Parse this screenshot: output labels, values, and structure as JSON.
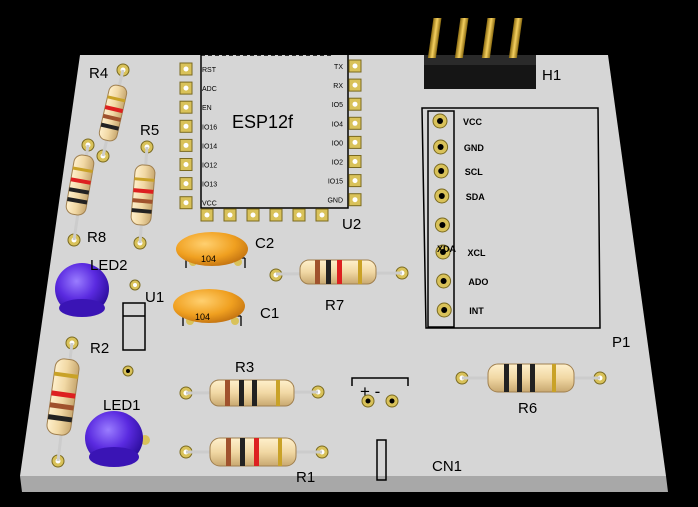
{
  "board": {
    "colors": {
      "board": "#d6d6d6",
      "board_edge": "#a8a8a8",
      "background": "#000000",
      "silkscreen": "#000000",
      "pad": "#d9c25a",
      "resistor_body": "#f1d8a4",
      "capacitor": "#f0a020",
      "led": "#5a2ae0",
      "header_pins": "#d4a017"
    }
  },
  "module": {
    "name": "ESP12f",
    "ref": "U2",
    "left_pins": [
      "RST",
      "ADC",
      "EN",
      "IO16",
      "IO14",
      "IO12",
      "IO13",
      "VCC"
    ],
    "right_pins": [
      "TX",
      "RX",
      "IO5",
      "IO4",
      "IO0",
      "IO2",
      "IO15",
      "GND"
    ]
  },
  "connector_p1": {
    "ref": "P1",
    "pins": [
      "VCC",
      "GND",
      "SCL",
      "SDA",
      "XDA",
      "XCL",
      "ADO",
      "INT"
    ],
    "overlap_label": "XDA"
  },
  "header": {
    "ref": "H1"
  },
  "resistors": {
    "r1": {
      "ref": "R1"
    },
    "r2": {
      "ref": "R2"
    },
    "r3": {
      "ref": "R3"
    },
    "r4": {
      "ref": "R4"
    },
    "r5": {
      "ref": "R5"
    },
    "r6": {
      "ref": "R6"
    },
    "r7": {
      "ref": "R7"
    },
    "r8": {
      "ref": "R8"
    }
  },
  "capacitors": {
    "c1": {
      "ref": "C1",
      "code": "104"
    },
    "c2": {
      "ref": "C2",
      "code": "104"
    }
  },
  "leds": {
    "led1": {
      "ref": "LED1"
    },
    "led2": {
      "ref": "LED2"
    }
  },
  "diode": {
    "ref": "U1"
  },
  "power": {
    "ref": "CN1",
    "polarity": "+ -"
  }
}
